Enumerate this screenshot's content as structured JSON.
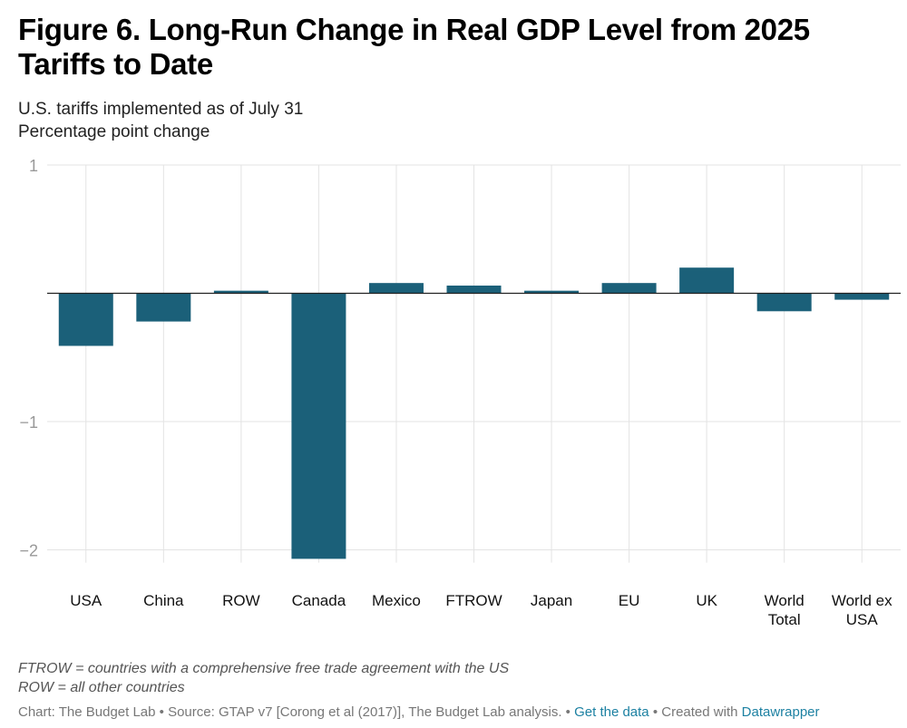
{
  "title": "Figure 6. Long-Run Change in Real GDP Level from 2025 Tariffs to Date",
  "subtitle": {
    "line1": "U.S. tariffs implemented as of July 31",
    "line2": "Percentage point change"
  },
  "chart_data": {
    "type": "bar",
    "title": "Figure 6. Long-Run Change in Real GDP Level from 2025 Tariffs to Date",
    "ylabel": "Percentage point change",
    "xlabel": "",
    "ylim": [
      -2.1,
      1
    ],
    "yticks": [
      1,
      -1,
      -2
    ],
    "ytick_labels": [
      "1",
      "−1",
      "−2"
    ],
    "grid": true,
    "categories": [
      [
        "USA"
      ],
      [
        "China"
      ],
      [
        "ROW"
      ],
      [
        "Canada"
      ],
      [
        "Mexico"
      ],
      [
        "FTROW"
      ],
      [
        "Japan"
      ],
      [
        "EU"
      ],
      [
        "UK"
      ],
      [
        "World",
        "Total"
      ],
      [
        "World ex",
        "USA"
      ]
    ],
    "values": [
      -0.41,
      -0.22,
      0.02,
      -2.07,
      0.08,
      0.06,
      0.02,
      0.08,
      0.2,
      -0.14,
      -0.05
    ],
    "bar_color": "#1b6079"
  },
  "notes": {
    "line1": "FTROW = countries with a comprehensive free trade agreement with the US",
    "line2": "ROW = all other countries"
  },
  "source": {
    "prefix": "Chart: The Budget Lab • Source: GTAP v7 [Corong et al (2017)], The Budget Lab analysis. •",
    "get_data": "Get the data",
    "middle": "• Created with",
    "tool": "Datawrapper"
  },
  "colors": {
    "bar": "#1b6079",
    "grid": "#e3e3e3",
    "zero_line": "#222222",
    "tick_label": "#999999",
    "link": "#1d81a2"
  }
}
